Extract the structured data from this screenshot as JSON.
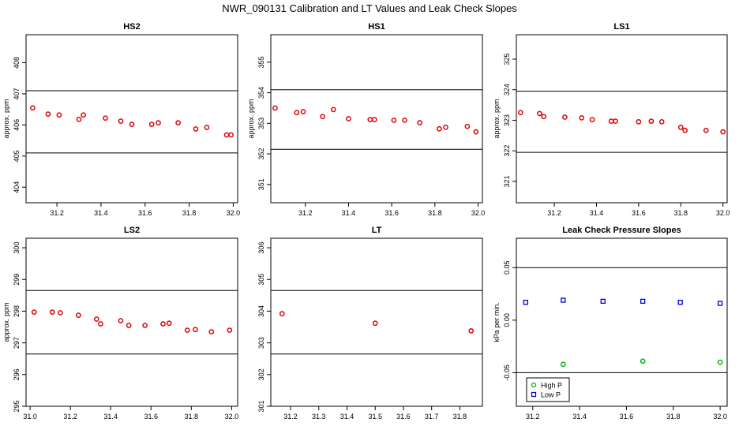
{
  "figure": {
    "title": "NWR_090131  Calibration and LT Values and Leak Check Slopes"
  },
  "chart_data": [
    {
      "type": "scatter",
      "title": "HS2",
      "xlabel": "",
      "ylabel": "approx. ppm",
      "xlim": [
        31.06,
        32.02
      ],
      "ylim": [
        403.5,
        408.9
      ],
      "xticks": [
        31.2,
        31.4,
        31.6,
        31.8,
        32.0
      ],
      "xtick_labels": [
        "31.2",
        "31.4",
        "31.6",
        "31.8",
        "32.0"
      ],
      "yticks": [
        404,
        405,
        406,
        407,
        408
      ],
      "ytick_labels": [
        "404",
        "405",
        "406",
        "407",
        "408"
      ],
      "hlines": [
        407.1,
        405.1
      ],
      "series": [
        {
          "color": "#e00000",
          "x": [
            31.09,
            31.16,
            31.21,
            31.3,
            31.32,
            31.42,
            31.49,
            31.54,
            31.63,
            31.66,
            31.75,
            31.83,
            31.88,
            31.97,
            31.99
          ],
          "y": [
            406.55,
            406.35,
            406.32,
            406.18,
            406.32,
            406.22,
            406.12,
            406.02,
            406.02,
            406.07,
            406.07,
            405.87,
            405.92,
            405.68,
            405.68
          ]
        }
      ]
    },
    {
      "type": "scatter",
      "title": "HS1",
      "xlabel": "",
      "ylabel": "approx. ppm",
      "xlim": [
        31.04,
        32.02
      ],
      "ylim": [
        350.4,
        355.9
      ],
      "xticks": [
        31.2,
        31.4,
        31.6,
        31.8,
        32.0
      ],
      "xtick_labels": [
        "31.2",
        "31.4",
        "31.6",
        "31.8",
        "32.0"
      ],
      "yticks": [
        351,
        352,
        353,
        354,
        355
      ],
      "ytick_labels": [
        "351",
        "352",
        "353",
        "354",
        "355"
      ],
      "hlines": [
        354.1,
        352.15
      ],
      "series": [
        {
          "color": "#e00000",
          "x": [
            31.06,
            31.16,
            31.19,
            31.28,
            31.33,
            31.4,
            31.5,
            31.52,
            31.61,
            31.66,
            31.73,
            31.82,
            31.85,
            31.95,
            31.99
          ],
          "y": [
            353.5,
            353.35,
            353.38,
            353.22,
            353.45,
            353.15,
            353.12,
            353.12,
            353.1,
            353.1,
            353.02,
            352.82,
            352.87,
            352.9,
            352.72
          ]
        }
      ]
    },
    {
      "type": "scatter",
      "title": "LS1",
      "xlabel": "",
      "ylabel": "approx. ppm",
      "xlim": [
        31.02,
        32.02
      ],
      "ylim": [
        320.3,
        325.8
      ],
      "xticks": [
        31.2,
        31.4,
        31.6,
        31.8,
        32.0
      ],
      "xtick_labels": [
        "31.2",
        "31.4",
        "31.6",
        "31.8",
        "32.0"
      ],
      "yticks": [
        321,
        322,
        323,
        324,
        325
      ],
      "ytick_labels": [
        "321",
        "322",
        "323",
        "324",
        "325"
      ],
      "hlines": [
        323.95,
        321.95
      ],
      "series": [
        {
          "color": "#e00000",
          "x": [
            31.04,
            31.13,
            31.15,
            31.25,
            31.33,
            31.38,
            31.47,
            31.49,
            31.6,
            31.66,
            31.71,
            31.8,
            31.82,
            31.92,
            32.0
          ],
          "y": [
            323.25,
            323.22,
            323.12,
            323.1,
            323.08,
            323.02,
            322.97,
            322.97,
            322.95,
            322.97,
            322.95,
            322.77,
            322.67,
            322.67,
            322.62
          ]
        }
      ]
    },
    {
      "type": "scatter",
      "title": "LS2",
      "xlabel": "",
      "ylabel": "approx. ppm",
      "xlim": [
        30.98,
        32.03
      ],
      "ylim": [
        295.0,
        300.3
      ],
      "xticks": [
        31.0,
        31.2,
        31.4,
        31.6,
        31.8,
        32.0
      ],
      "xtick_labels": [
        "31.0",
        "31.2",
        "31.4",
        "31.6",
        "31.8",
        "32.0"
      ],
      "yticks": [
        295,
        296,
        297,
        298,
        299,
        300
      ],
      "ytick_labels": [
        "295",
        "296",
        "297",
        "298",
        "299",
        "300"
      ],
      "hlines": [
        298.65,
        296.65
      ],
      "series": [
        {
          "color": "#e00000",
          "x": [
            31.02,
            31.11,
            31.15,
            31.24,
            31.33,
            31.35,
            31.45,
            31.49,
            31.57,
            31.66,
            31.69,
            31.78,
            31.82,
            31.9,
            31.99
          ],
          "y": [
            297.97,
            297.97,
            297.95,
            297.87,
            297.75,
            297.6,
            297.7,
            297.55,
            297.55,
            297.6,
            297.62,
            297.4,
            297.42,
            297.35,
            297.4
          ]
        }
      ]
    },
    {
      "type": "scatter",
      "title": "LT",
      "xlabel": "",
      "ylabel": "",
      "xlim": [
        31.13,
        31.88
      ],
      "ylim": [
        301.0,
        306.3
      ],
      "xticks": [
        31.2,
        31.3,
        31.4,
        31.5,
        31.6,
        31.7,
        31.8
      ],
      "xtick_labels": [
        "31.2",
        "31.3",
        "31.4",
        "31.5",
        "31.6",
        "31.7",
        "31.8"
      ],
      "yticks": [
        301,
        302,
        303,
        304,
        305,
        306
      ],
      "ytick_labels": [
        "301",
        "302",
        "303",
        "304",
        "305",
        "306"
      ],
      "hlines": [
        304.65,
        302.65
      ],
      "series": [
        {
          "color": "#e00000",
          "x": [
            31.17,
            31.5,
            31.84
          ],
          "y": [
            303.92,
            303.62,
            303.38
          ]
        }
      ]
    },
    {
      "type": "scatter",
      "title": "Leak Check Pressure Slopes",
      "xlabel": "",
      "ylabel": "kPa per min.",
      "xlim": [
        31.13,
        32.03
      ],
      "ylim": [
        -0.082,
        0.078
      ],
      "xticks": [
        31.2,
        31.4,
        31.6,
        31.8,
        32.0
      ],
      "xtick_labels": [
        "31.2",
        "31.4",
        "31.6",
        "31.8",
        "32.0"
      ],
      "yticks": [
        -0.05,
        0.0,
        0.05
      ],
      "ytick_labels": [
        "-0.05",
        "0.00",
        "0.05"
      ],
      "hlines": [
        0.05,
        -0.05
      ],
      "legend": {
        "position": "bottom-left"
      },
      "series": [
        {
          "name": "High P",
          "color": "#00bb00",
          "x": [
            31.33,
            31.67,
            32.0
          ],
          "y": [
            -0.042,
            -0.039,
            -0.04
          ]
        },
        {
          "name": "Low P",
          "color": "#0000cc",
          "x": [
            31.17,
            31.33,
            31.5,
            31.67,
            31.83,
            32.0
          ],
          "y": [
            0.017,
            0.019,
            0.018,
            0.018,
            0.017,
            0.016
          ]
        }
      ]
    }
  ]
}
